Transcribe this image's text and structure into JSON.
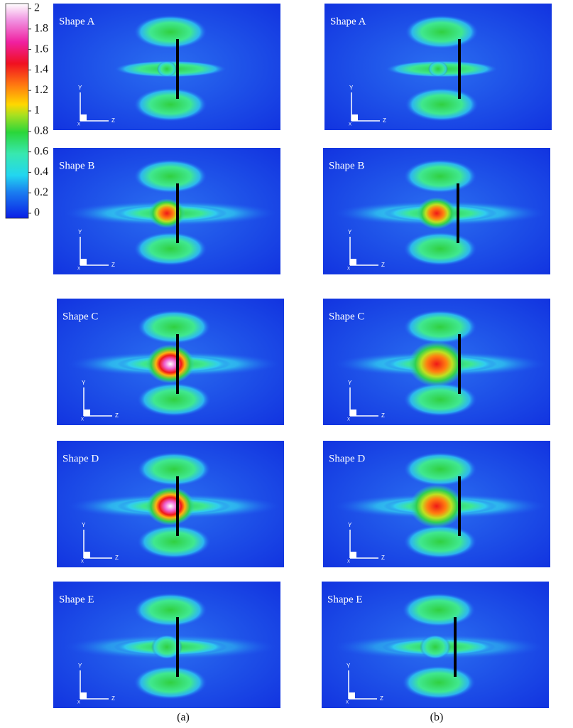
{
  "colorbar": {
    "ticks": [
      0,
      0.2,
      0.4,
      0.6,
      0.8,
      1,
      1.2,
      1.4,
      1.6,
      1.8,
      2
    ]
  },
  "axes": {
    "y": "Y",
    "z": "Z",
    "x": "X"
  },
  "columns": [
    {
      "caption": "(a)",
      "panels": [
        {
          "label": "Shape A"
        },
        {
          "label": "Shape B"
        },
        {
          "label": "Shape C"
        },
        {
          "label": "Shape D"
        },
        {
          "label": "Shape E"
        }
      ]
    },
    {
      "caption": "(b)",
      "panels": [
        {
          "label": "Shape A"
        },
        {
          "label": "Shape B"
        },
        {
          "label": "Shape C"
        },
        {
          "label": "Shape D"
        },
        {
          "label": "Shape E"
        }
      ]
    }
  ]
}
